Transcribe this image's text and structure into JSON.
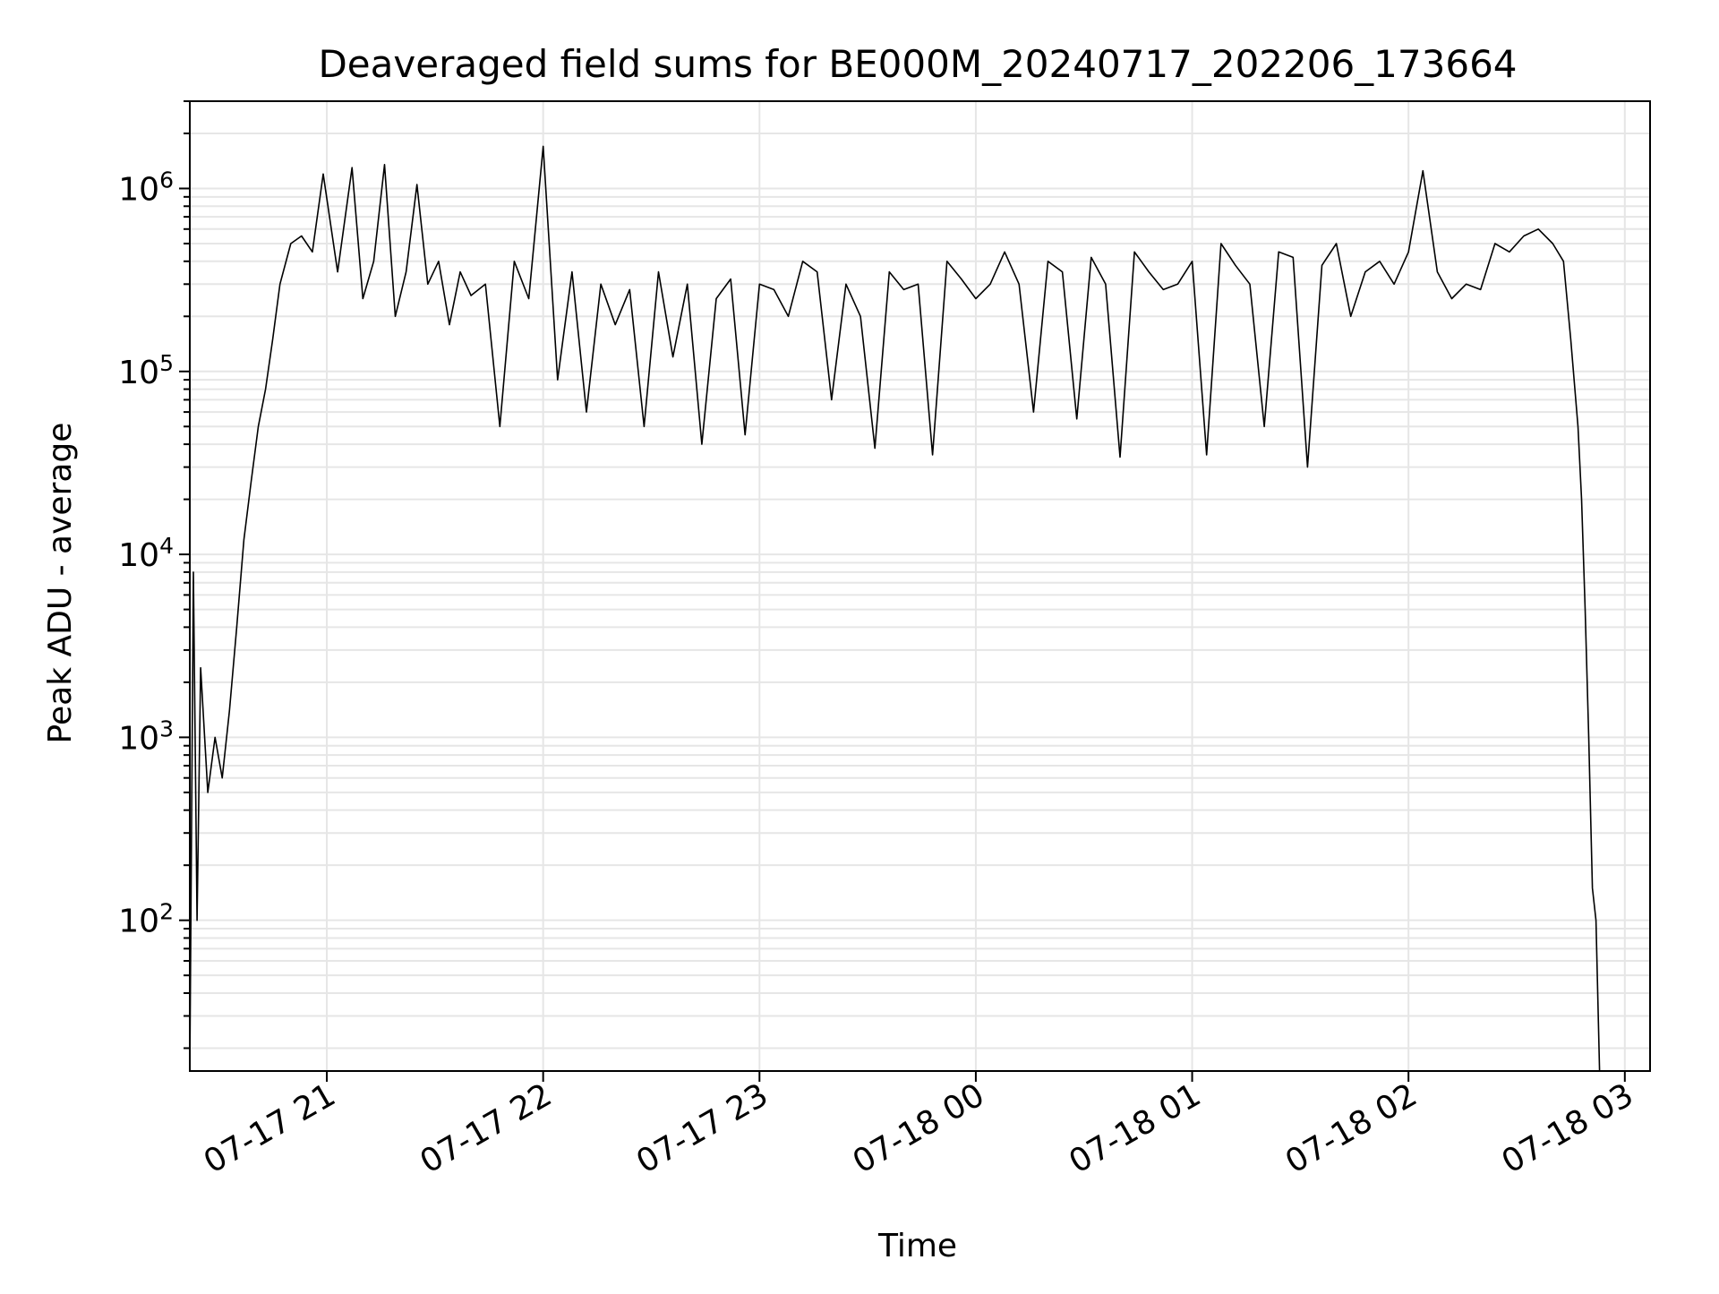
{
  "chart_data": {
    "type": "line",
    "title": "Deaveraged field sums for BE000M_20240717_202206_173664",
    "xlabel": "Time",
    "ylabel": "Peak ADU - average",
    "y_scale": "log",
    "ylim": [
      15,
      3000000
    ],
    "xlim": [
      "2024-07-17 20:22",
      "2024-07-18 03:07"
    ],
    "grid": true,
    "line_color": "#000000",
    "grid_color": "#e6e6e6",
    "x_ticks": [
      {
        "label": "07-17 21",
        "value": "2024-07-17 21:00"
      },
      {
        "label": "07-17 22",
        "value": "2024-07-17 22:00"
      },
      {
        "label": "07-17 23",
        "value": "2024-07-17 23:00"
      },
      {
        "label": "07-18 00",
        "value": "2024-07-18 00:00"
      },
      {
        "label": "07-18 01",
        "value": "2024-07-18 01:00"
      },
      {
        "label": "07-18 02",
        "value": "2024-07-18 02:00"
      },
      {
        "label": "07-18 03",
        "value": "2024-07-18 03:00"
      }
    ],
    "y_ticks": [
      {
        "base": "10",
        "exp": "2",
        "value": 100
      },
      {
        "base": "10",
        "exp": "3",
        "value": 1000
      },
      {
        "base": "10",
        "exp": "4",
        "value": 10000
      },
      {
        "base": "10",
        "exp": "5",
        "value": 100000
      },
      {
        "base": "10",
        "exp": "6",
        "value": 1000000
      }
    ],
    "series": [
      {
        "x": [
          "2024-07-17 20:22",
          "2024-07-17 20:23",
          "2024-07-17 20:24",
          "2024-07-17 20:25",
          "2024-07-17 20:27",
          "2024-07-17 20:29",
          "2024-07-17 20:31",
          "2024-07-17 20:33",
          "2024-07-17 20:35",
          "2024-07-17 20:37",
          "2024-07-17 20:39",
          "2024-07-17 20:41",
          "2024-07-17 20:43",
          "2024-07-17 20:45",
          "2024-07-17 20:47",
          "2024-07-17 20:50",
          "2024-07-17 20:53",
          "2024-07-17 20:56",
          "2024-07-17 20:59",
          "2024-07-17 21:03",
          "2024-07-17 21:07",
          "2024-07-17 21:10",
          "2024-07-17 21:13",
          "2024-07-17 21:16",
          "2024-07-17 21:19",
          "2024-07-17 21:22",
          "2024-07-17 21:25",
          "2024-07-17 21:28",
          "2024-07-17 21:31",
          "2024-07-17 21:34",
          "2024-07-17 21:37",
          "2024-07-17 21:40",
          "2024-07-17 21:44",
          "2024-07-17 21:48",
          "2024-07-17 21:52",
          "2024-07-17 21:56",
          "2024-07-17 22:00",
          "2024-07-17 22:04",
          "2024-07-17 22:08",
          "2024-07-17 22:12",
          "2024-07-17 22:16",
          "2024-07-17 22:20",
          "2024-07-17 22:24",
          "2024-07-17 22:28",
          "2024-07-17 22:32",
          "2024-07-17 22:36",
          "2024-07-17 22:40",
          "2024-07-17 22:44",
          "2024-07-17 22:48",
          "2024-07-17 22:52",
          "2024-07-17 22:56",
          "2024-07-17 23:00",
          "2024-07-17 23:04",
          "2024-07-17 23:08",
          "2024-07-17 23:12",
          "2024-07-17 23:16",
          "2024-07-17 23:20",
          "2024-07-17 23:24",
          "2024-07-17 23:28",
          "2024-07-17 23:32",
          "2024-07-17 23:36",
          "2024-07-17 23:40",
          "2024-07-17 23:44",
          "2024-07-17 23:48",
          "2024-07-17 23:52",
          "2024-07-17 23:56",
          "2024-07-18 00:00",
          "2024-07-18 00:04",
          "2024-07-18 00:08",
          "2024-07-18 00:12",
          "2024-07-18 00:16",
          "2024-07-18 00:20",
          "2024-07-18 00:24",
          "2024-07-18 00:28",
          "2024-07-18 00:32",
          "2024-07-18 00:36",
          "2024-07-18 00:40",
          "2024-07-18 00:44",
          "2024-07-18 00:48",
          "2024-07-18 00:52",
          "2024-07-18 00:56",
          "2024-07-18 01:00",
          "2024-07-18 01:04",
          "2024-07-18 01:08",
          "2024-07-18 01:12",
          "2024-07-18 01:16",
          "2024-07-18 01:20",
          "2024-07-18 01:24",
          "2024-07-18 01:28",
          "2024-07-18 01:32",
          "2024-07-18 01:36",
          "2024-07-18 01:40",
          "2024-07-18 01:44",
          "2024-07-18 01:48",
          "2024-07-18 01:52",
          "2024-07-18 01:56",
          "2024-07-18 02:00",
          "2024-07-18 02:04",
          "2024-07-18 02:08",
          "2024-07-18 02:12",
          "2024-07-18 02:16",
          "2024-07-18 02:20",
          "2024-07-18 02:24",
          "2024-07-18 02:28",
          "2024-07-18 02:32",
          "2024-07-18 02:36",
          "2024-07-18 02:40",
          "2024-07-18 02:43",
          "2024-07-18 02:45",
          "2024-07-18 02:47",
          "2024-07-18 02:48",
          "2024-07-18 02:49",
          "2024-07-18 02:50",
          "2024-07-18 02:51",
          "2024-07-18 02:52",
          "2024-07-18 02:53"
        ],
        "y": [
          15,
          8000,
          100,
          2400,
          500,
          1000,
          600,
          1400,
          4000,
          12000,
          25000,
          50000,
          80000,
          150000,
          300000,
          500000,
          550000,
          450000,
          1200000,
          350000,
          1300000,
          250000,
          400000,
          1350000,
          200000,
          350000,
          1050000,
          300000,
          400000,
          180000,
          350000,
          260000,
          300000,
          50000,
          400000,
          250000,
          1700000,
          90000,
          350000,
          60000,
          300000,
          180000,
          280000,
          50000,
          350000,
          120000,
          300000,
          40000,
          250000,
          320000,
          45000,
          300000,
          280000,
          200000,
          400000,
          350000,
          70000,
          300000,
          200000,
          38000,
          350000,
          280000,
          300000,
          35000,
          400000,
          320000,
          250000,
          300000,
          450000,
          300000,
          60000,
          400000,
          350000,
          55000,
          420000,
          300000,
          34000,
          450000,
          350000,
          280000,
          300000,
          400000,
          35000,
          500000,
          380000,
          300000,
          50000,
          450000,
          420000,
          30000,
          380000,
          500000,
          200000,
          350000,
          400000,
          300000,
          450000,
          1250000,
          350000,
          250000,
          300000,
          280000,
          500000,
          450000,
          550000,
          600000,
          500000,
          400000,
          150000,
          50000,
          20000,
          5000,
          1000,
          150,
          100,
          15
        ]
      }
    ]
  }
}
